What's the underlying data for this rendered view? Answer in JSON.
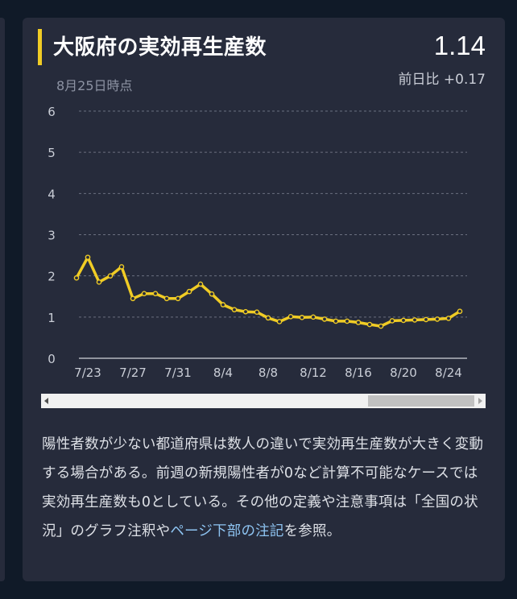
{
  "card": {
    "title": "大阪府の実効再生産数",
    "date": "8月25日時点",
    "value": "1.14",
    "delta": "前日比 +0.17"
  },
  "note": {
    "text_1": "陽性者数が少ない都道府県は数人の違いで実効再生産数が大きく変動する場合がある。前週の新規陽性者が0など計算不可能なケースでは実効再生産数も0としている。その他の定義や注意事項は「全国の状況」のグラフ注釈や",
    "link_1": "ページ下部の注記",
    "text_2": "を参照。"
  },
  "colors": {
    "line": "#f0cc25",
    "background": "#262b3b",
    "grid": "#6b7080"
  },
  "chart_data": {
    "type": "line",
    "title": "",
    "xlabel": "",
    "ylabel": "",
    "ylim": [
      0,
      6
    ],
    "yticks": [
      "0",
      "1",
      "2",
      "3",
      "4",
      "5",
      "6"
    ],
    "xtick_labels": [
      "7/23",
      "7/27",
      "7/31",
      "8/4",
      "8/8",
      "8/12",
      "8/16",
      "8/20",
      "8/24"
    ],
    "grid": true,
    "series": [
      {
        "x": [
          "7/22",
          "7/23",
          "7/24",
          "7/25",
          "7/26",
          "7/27",
          "7/28",
          "7/29",
          "7/30",
          "7/31",
          "8/1",
          "8/2",
          "8/3",
          "8/4",
          "8/5",
          "8/6",
          "8/7",
          "8/8",
          "8/9",
          "8/10",
          "8/11",
          "8/12",
          "8/13",
          "8/14",
          "8/15",
          "8/16",
          "8/17",
          "8/18",
          "8/19",
          "8/20",
          "8/21",
          "8/22",
          "8/23",
          "8/24",
          "8/25"
        ],
        "values": [
          1.95,
          2.45,
          1.85,
          2.0,
          2.22,
          1.45,
          1.57,
          1.57,
          1.45,
          1.45,
          1.62,
          1.8,
          1.56,
          1.3,
          1.18,
          1.13,
          1.12,
          0.98,
          0.89,
          1.01,
          0.99,
          1.0,
          0.95,
          0.9,
          0.9,
          0.87,
          0.82,
          0.78,
          0.91,
          0.92,
          0.93,
          0.94,
          0.95,
          0.97,
          1.14
        ]
      }
    ]
  }
}
